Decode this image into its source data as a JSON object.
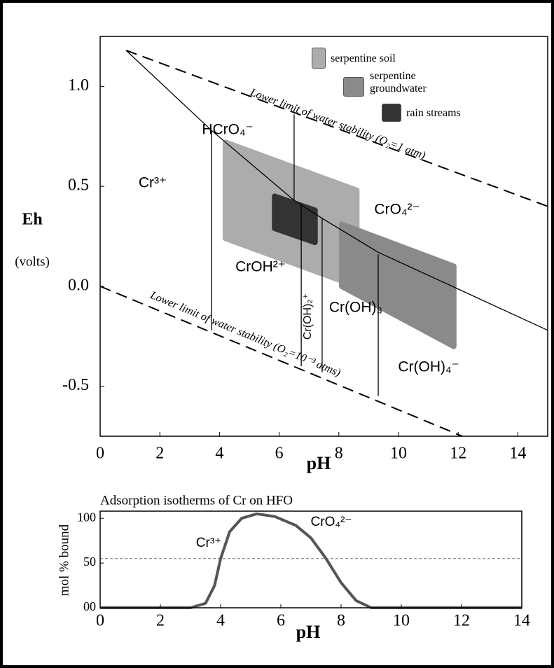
{
  "chart_data": [
    {
      "type": "line",
      "xlabel": "pH",
      "ylabel": "Eh",
      "ylabel_unit": "(volts)",
      "xlim": [
        0,
        15
      ],
      "ylim": [
        -0.75,
        1.25
      ],
      "xticks": [
        0,
        2,
        4,
        6,
        8,
        10,
        12,
        14
      ],
      "yticks": [
        -0.5,
        {
          "value": 0,
          "label": "0.0"
        },
        0.5,
        {
          "value": 1,
          "label": "1.0"
        }
      ],
      "regions": [
        {
          "name": "serpentine soil",
          "color": "#acacac",
          "x": [
            4.2,
            8.6,
            8.6,
            4.2
          ],
          "y": [
            0.72,
            0.48,
            0.0,
            0.24
          ]
        },
        {
          "name": "serpentine groundwater",
          "color": "#8a8a8a",
          "x": [
            8.1,
            11.85,
            11.85,
            8.1
          ],
          "y": [
            0.31,
            0.1,
            -0.3,
            0.0
          ]
        },
        {
          "name": "rain streams",
          "color": "#333333",
          "x": [
            5.85,
            7.2,
            7.2,
            5.85
          ],
          "y": [
            0.45,
            0.38,
            0.22,
            0.29
          ]
        }
      ],
      "lines": [
        {
          "style": "dashed",
          "x": [
            0.87,
            15
          ],
          "y": [
            1.18,
            0.4
          ]
        },
        {
          "style": "dashed",
          "x": [
            0,
            12.14
          ],
          "y": [
            0,
            -0.75
          ]
        },
        {
          "style": "solid",
          "x": [
            0.87,
            3.73,
            6.5,
            7.44,
            9.32,
            11.8,
            15
          ],
          "y": [
            1.18,
            0.78,
            0.43,
            0.34,
            0.17,
            0.0,
            -0.22
          ]
        },
        {
          "style": "solid",
          "x": [
            3.73,
            3.73
          ],
          "y": [
            0.78,
            -0.22
          ]
        },
        {
          "style": "solid",
          "x": [
            6.5,
            6.5
          ],
          "y": [
            0.86,
            0.43
          ]
        },
        {
          "style": "solid",
          "x": [
            6.74,
            6.74
          ],
          "y": [
            0.41,
            -0.4
          ]
        },
        {
          "style": "solid",
          "x": [
            7.44,
            7.44
          ],
          "y": [
            0.34,
            -0.43
          ]
        },
        {
          "style": "solid",
          "x": [
            9.32,
            9.32
          ],
          "y": [
            0.16,
            -0.55
          ]
        }
      ],
      "species": [
        "Cr³⁺",
        "HCrO₄⁻",
        "CrO₄²⁻",
        "CrOH²⁺",
        "Cr(OH)₂⁺",
        "Cr(OH)₃",
        "Cr(OH)₄⁻"
      ],
      "annotations": [
        "Lower limit of water stability (O₂=1 atm)",
        "Lower limit of water stability (O₂=10⁻³ atms)"
      ]
    },
    {
      "type": "line",
      "title": "Adsorption isotherms of Cr on HFO",
      "xlabel": "pH",
      "ylabel": "mol % bound",
      "xlim": [
        0,
        14
      ],
      "ylim": [
        0,
        108
      ],
      "xticks": [
        0,
        2,
        4,
        6,
        8,
        10,
        12,
        14
      ],
      "yticks": [
        {
          "value": 0,
          "label": "00"
        },
        50,
        100
      ],
      "x": [
        0,
        3,
        3.5,
        3.8,
        4.0,
        4.3,
        4.7,
        5.2,
        5.8,
        6.5,
        7.0,
        7.5,
        8.0,
        8.5,
        9.0,
        14
      ],
      "values": [
        0,
        0,
        5,
        25,
        55,
        85,
        100,
        105,
        102,
        92,
        78,
        55,
        28,
        8,
        0,
        0
      ],
      "reference_line": 55,
      "species": [
        "Cr³⁺",
        "CrO₄²⁻"
      ]
    }
  ]
}
